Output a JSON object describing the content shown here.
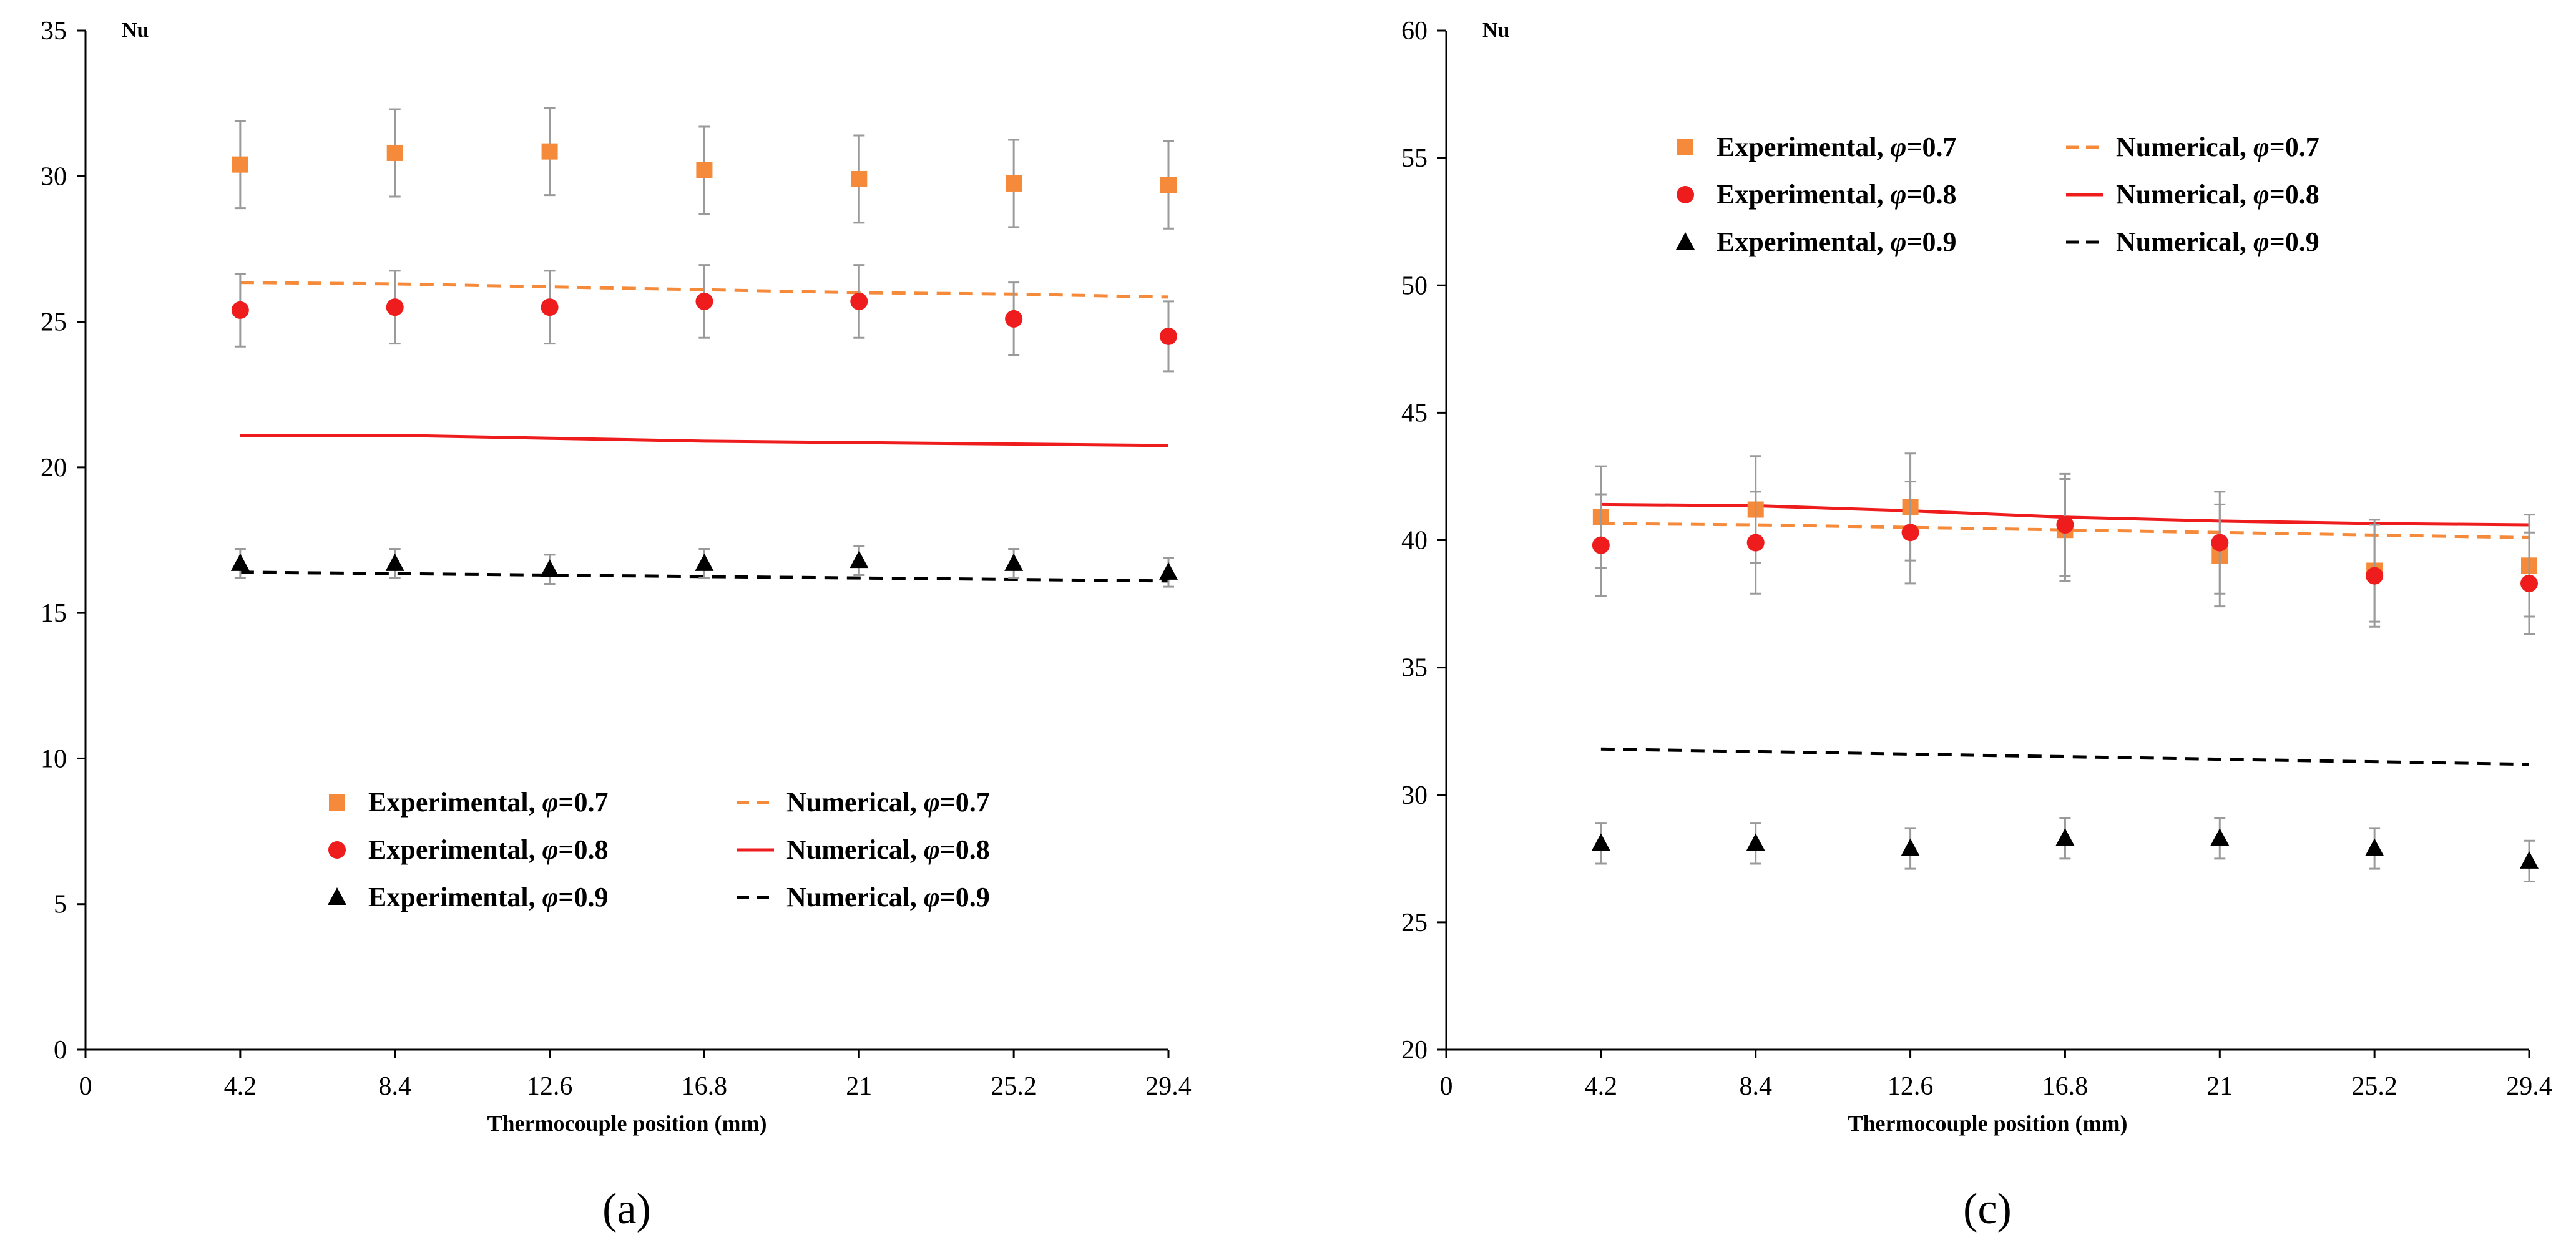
{
  "colors": {
    "exp_07": "#f58a3a",
    "exp_08": "#ee1c1c",
    "exp_09": "#000000",
    "num_07": "#f58a3a",
    "num_08": "#ee1c1c",
    "num_09": "#000000",
    "errorbar": "#9a9a9a"
  },
  "chart_data": [
    {
      "type": "scatter",
      "caption": "(a)",
      "xlabel": "Thermocouple position (mm)",
      "ylabel": "Nu",
      "x_ticks": [
        0,
        4.2,
        8.4,
        12.6,
        16.8,
        21,
        25.2,
        29.4
      ],
      "x_tick_labels": [
        "0",
        "4.2",
        "8.4",
        "12.6",
        "16.8",
        "21",
        "25.2",
        "29.4"
      ],
      "xlim": [
        0,
        29.4
      ],
      "ylim": [
        0,
        35
      ],
      "y_ticks": [
        0,
        5,
        10,
        15,
        20,
        25,
        30,
        35
      ],
      "y_tick_labels": [
        "0",
        "5",
        "10",
        "15",
        "20",
        "25",
        "30",
        "35"
      ],
      "legend_position": "bottom-center",
      "series": [
        {
          "name": "Experimental, φ=0.7",
          "kind": "marker",
          "marker": "square",
          "color_key": "exp_07",
          "x": [
            4.2,
            8.4,
            12.6,
            16.8,
            21,
            25.2,
            29.4
          ],
          "values": [
            30.4,
            30.8,
            30.85,
            30.2,
            29.9,
            29.75,
            29.7
          ],
          "err": [
            1.5,
            1.5,
            1.5,
            1.5,
            1.5,
            1.5,
            1.5
          ]
        },
        {
          "name": "Experimental, φ=0.8",
          "kind": "marker",
          "marker": "circle",
          "color_key": "exp_08",
          "x": [
            4.2,
            8.4,
            12.6,
            16.8,
            21,
            25.2,
            29.4
          ],
          "values": [
            25.4,
            25.5,
            25.5,
            25.7,
            25.7,
            25.1,
            24.5
          ],
          "err": [
            1.25,
            1.25,
            1.25,
            1.25,
            1.25,
            1.25,
            1.2
          ]
        },
        {
          "name": "Experimental, φ=0.9",
          "kind": "marker",
          "marker": "triangle",
          "color_key": "exp_09",
          "x": [
            4.2,
            8.4,
            12.6,
            16.8,
            21,
            25.2,
            29.4
          ],
          "values": [
            16.7,
            16.7,
            16.5,
            16.7,
            16.8,
            16.7,
            16.4
          ],
          "err": [
            0.5,
            0.5,
            0.5,
            0.5,
            0.5,
            0.5,
            0.5
          ]
        },
        {
          "name": "Numerical, φ=0.7",
          "kind": "line",
          "dash": "dashed",
          "color_key": "num_07",
          "x": [
            4.2,
            8.4,
            12.6,
            16.8,
            21,
            25.2,
            29.4
          ],
          "values": [
            26.35,
            26.3,
            26.2,
            26.1,
            26.0,
            25.95,
            25.85
          ]
        },
        {
          "name": "Numerical, φ=0.8",
          "kind": "line",
          "dash": "solid",
          "color_key": "num_08",
          "x": [
            4.2,
            8.4,
            12.6,
            16.8,
            21,
            25.2,
            29.4
          ],
          "values": [
            21.1,
            21.1,
            21.0,
            20.9,
            20.85,
            20.8,
            20.75
          ]
        },
        {
          "name": "Numerical, φ=0.9",
          "kind": "line",
          "dash": "dashed",
          "color_key": "num_09",
          "x": [
            4.2,
            8.4,
            12.6,
            16.8,
            21,
            25.2,
            29.4
          ],
          "values": [
            16.4,
            16.35,
            16.3,
            16.25,
            16.2,
            16.15,
            16.1
          ]
        }
      ]
    },
    {
      "type": "scatter",
      "caption": "(c)",
      "xlabel": "Thermocouple position (mm)",
      "ylabel": "Nu",
      "x_ticks": [
        0,
        4.2,
        8.4,
        12.6,
        16.8,
        21,
        25.2,
        29.4
      ],
      "x_tick_labels": [
        "0",
        "4.2",
        "8.4",
        "12.6",
        "16.8",
        "21",
        "25.2",
        "29.4"
      ],
      "xlim": [
        0,
        29.4
      ],
      "ylim": [
        20,
        60
      ],
      "y_ticks": [
        20,
        25,
        30,
        35,
        40,
        45,
        50,
        55,
        60
      ],
      "y_tick_labels": [
        "20",
        "25",
        "30",
        "35",
        "40",
        "45",
        "50",
        "55",
        "60"
      ],
      "legend_position": "top-center",
      "series": [
        {
          "name": "Experimental, φ=0.7",
          "kind": "marker",
          "marker": "square",
          "color_key": "exp_07",
          "x": [
            4.2,
            8.4,
            12.6,
            16.8,
            21,
            25.2,
            29.4
          ],
          "values": [
            40.9,
            41.2,
            41.3,
            40.4,
            39.4,
            38.8,
            39.0
          ],
          "err": [
            2.0,
            2.1,
            2.1,
            2.0,
            2.0,
            2.0,
            2.0
          ]
        },
        {
          "name": "Experimental, φ=0.8",
          "kind": "marker",
          "marker": "circle",
          "color_key": "exp_08",
          "x": [
            4.2,
            8.4,
            12.6,
            16.8,
            21,
            25.2,
            29.4
          ],
          "values": [
            39.8,
            39.9,
            40.3,
            40.6,
            39.9,
            38.6,
            38.3
          ],
          "err": [
            2.0,
            2.0,
            2.0,
            2.0,
            2.0,
            2.0,
            2.0
          ]
        },
        {
          "name": "Experimental, φ=0.9",
          "kind": "marker",
          "marker": "triangle",
          "color_key": "exp_09",
          "x": [
            4.2,
            8.4,
            12.6,
            16.8,
            21,
            25.2,
            29.4
          ],
          "values": [
            28.1,
            28.1,
            27.9,
            28.3,
            28.3,
            27.9,
            27.4
          ],
          "err": [
            0.8,
            0.8,
            0.8,
            0.8,
            0.8,
            0.8,
            0.8
          ]
        },
        {
          "name": "Numerical, φ=0.7",
          "kind": "line",
          "dash": "dashed",
          "color_key": "num_07",
          "x": [
            4.2,
            8.4,
            12.6,
            16.8,
            21,
            25.2,
            29.4
          ],
          "values": [
            40.65,
            40.6,
            40.5,
            40.4,
            40.3,
            40.2,
            40.1
          ]
        },
        {
          "name": "Numerical, φ=0.8",
          "kind": "line",
          "dash": "solid",
          "color_key": "num_08",
          "x": [
            4.2,
            8.4,
            12.6,
            16.8,
            21,
            25.2,
            29.4
          ],
          "values": [
            41.4,
            41.35,
            41.15,
            40.9,
            40.75,
            40.65,
            40.6
          ]
        },
        {
          "name": "Numerical, φ=0.9",
          "kind": "line",
          "dash": "dashed",
          "color_key": "num_09",
          "x": [
            4.2,
            8.4,
            12.6,
            16.8,
            21,
            25.2,
            29.4
          ],
          "values": [
            31.8,
            31.7,
            31.6,
            31.5,
            31.4,
            31.3,
            31.2
          ]
        }
      ]
    }
  ]
}
